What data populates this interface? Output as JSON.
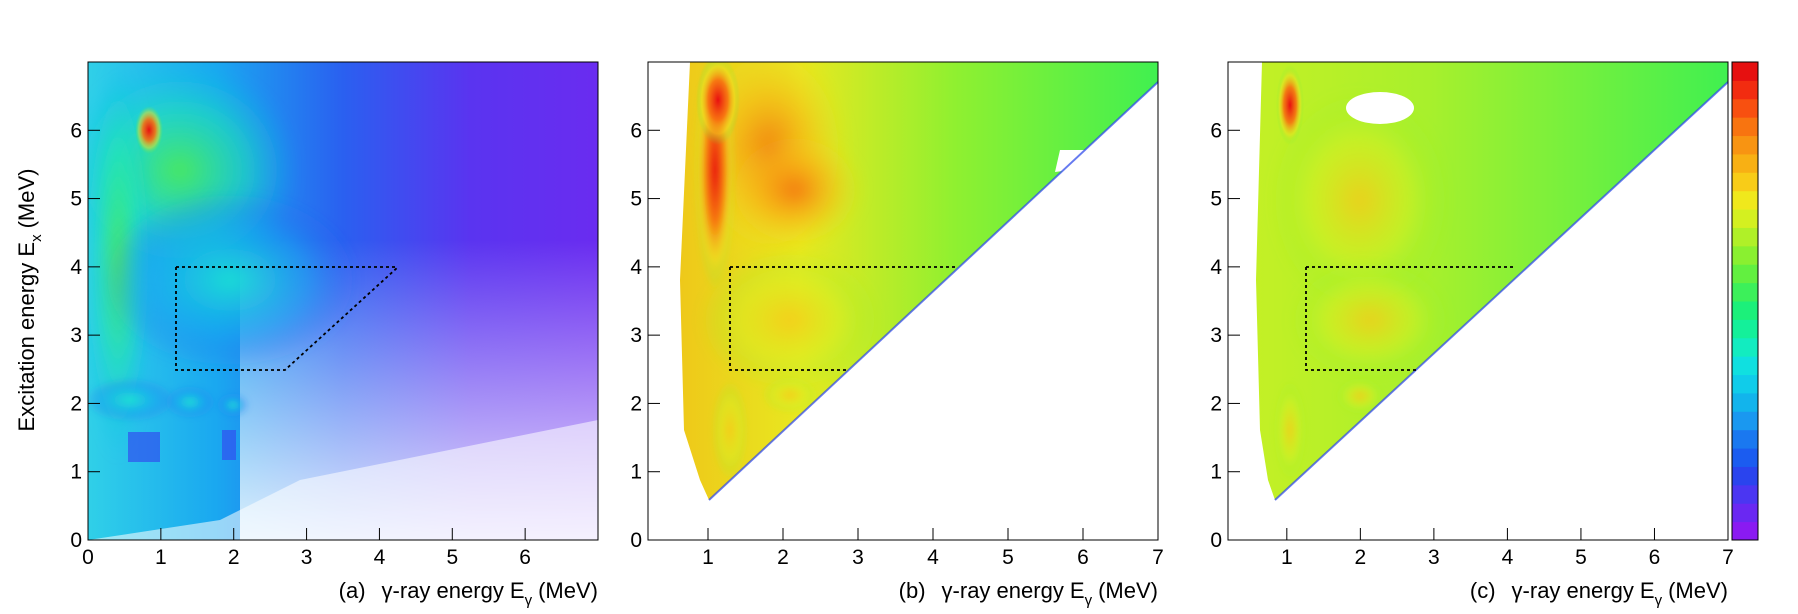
{
  "figure": {
    "ylabel": "Excitation energy E",
    "ylabel_sub": "x",
    "ylabel_unit": "(MeV)"
  },
  "chart_data": [
    {
      "type": "heatmap",
      "panel_label": "(a)",
      "xlabel": "γ-ray energy E",
      "xlabel_sub": "γ",
      "xlabel_unit": "(MeV)",
      "xlim": [
        0,
        7
      ],
      "ylim": [
        0,
        7
      ],
      "x_ticks": [
        "0",
        "1",
        "2",
        "3",
        "4",
        "5",
        "6"
      ],
      "y_ticks": [
        "0",
        "1",
        "2",
        "3",
        "4",
        "5",
        "6"
      ],
      "features": [
        {
          "x": 0.85,
          "y": 6.0,
          "intensity": "max"
        },
        {
          "x": 0.5,
          "y": 5.5,
          "intensity": "high"
        },
        {
          "x": 2.0,
          "y": 4.8,
          "intensity": "medium"
        },
        {
          "x": 0.3,
          "y": 2.0,
          "intensity": "medium"
        },
        {
          "x": 1.9,
          "y": 1.9,
          "intensity": "medium"
        }
      ],
      "cut_region": {
        "x": [
          1.2,
          2.55,
          4.2
        ],
        "y": [
          2.55,
          4.0
        ]
      }
    },
    {
      "type": "heatmap",
      "panel_label": "(b)",
      "xlabel": "γ-ray energy E",
      "xlabel_sub": "γ",
      "xlabel_unit": "(MeV)",
      "xlim": [
        0.2,
        7
      ],
      "ylim": [
        0,
        7
      ],
      "x_ticks": [
        "1",
        "2",
        "3",
        "4",
        "5",
        "6",
        "7"
      ],
      "y_ticks": [
        "0",
        "1",
        "2",
        "3",
        "4",
        "5",
        "6"
      ],
      "diagonal": "Ex = Eγ",
      "features": [
        {
          "x": 0.9,
          "y": 6.3,
          "intensity": "max"
        },
        {
          "x": 2.0,
          "y": 5.0,
          "intensity": "high"
        },
        {
          "x": 1.5,
          "y": 3.3,
          "intensity": "medium"
        },
        {
          "x": 2.0,
          "y": 2.0,
          "intensity": "medium"
        }
      ],
      "cut_region": {
        "x": [
          1.2,
          2.55,
          4.2
        ],
        "y": [
          2.55,
          4.0
        ]
      }
    },
    {
      "type": "heatmap",
      "panel_label": "(c)",
      "xlabel": "γ-ray energy E",
      "xlabel_sub": "γ",
      "xlabel_unit": "(MeV)",
      "xlim": [
        0.2,
        7
      ],
      "ylim": [
        0,
        7
      ],
      "x_ticks": [
        "1",
        "2",
        "3",
        "4",
        "5",
        "6",
        "7"
      ],
      "y_ticks": [
        "0",
        "1",
        "2",
        "3",
        "4",
        "5",
        "6"
      ],
      "diagonal": "Ex = Eγ",
      "features": [
        {
          "x": 0.85,
          "y": 6.3,
          "intensity": "max"
        },
        {
          "x": 2.0,
          "y": 4.9,
          "intensity": "medium-high"
        },
        {
          "x": 1.7,
          "y": 2.0,
          "intensity": "medium"
        }
      ],
      "cut_region": {
        "x": [
          1.2,
          2.55,
          4.2
        ],
        "y": [
          2.55,
          4.0
        ]
      }
    }
  ],
  "colorbar": {
    "colors": [
      "#8a1af2",
      "#6a28f2",
      "#4b36f2",
      "#2a44ee",
      "#1b5cf0",
      "#1a78f0",
      "#1a98f0",
      "#12b4ec",
      "#10ccea",
      "#10e0e0",
      "#12ecc0",
      "#14f09a",
      "#1cf07a",
      "#3cf05a",
      "#62f040",
      "#8af030",
      "#b0f028",
      "#d4f020",
      "#f0e81c",
      "#f8cc18",
      "#f8b014",
      "#f89412",
      "#f87410",
      "#f85010",
      "#f22c10",
      "#e61010"
    ]
  }
}
